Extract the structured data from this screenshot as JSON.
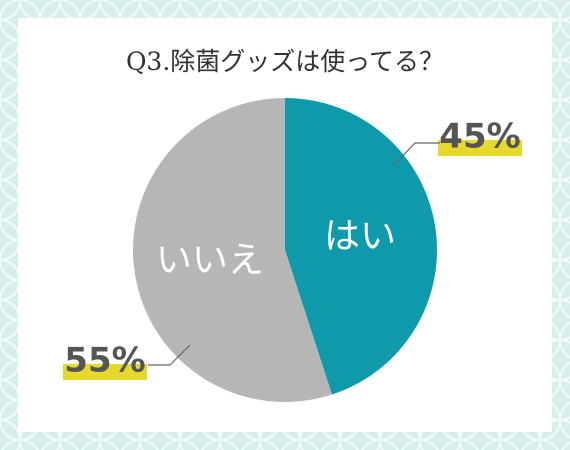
{
  "chart_data": {
    "type": "pie",
    "title": "Q3.除菌グッズは使ってる？",
    "categories": [
      "はい",
      "いいえ"
    ],
    "values": [
      45,
      55
    ],
    "value_labels": [
      "45%",
      "55%"
    ],
    "colors": [
      "#0e9aab",
      "#b6b6b6"
    ]
  }
}
